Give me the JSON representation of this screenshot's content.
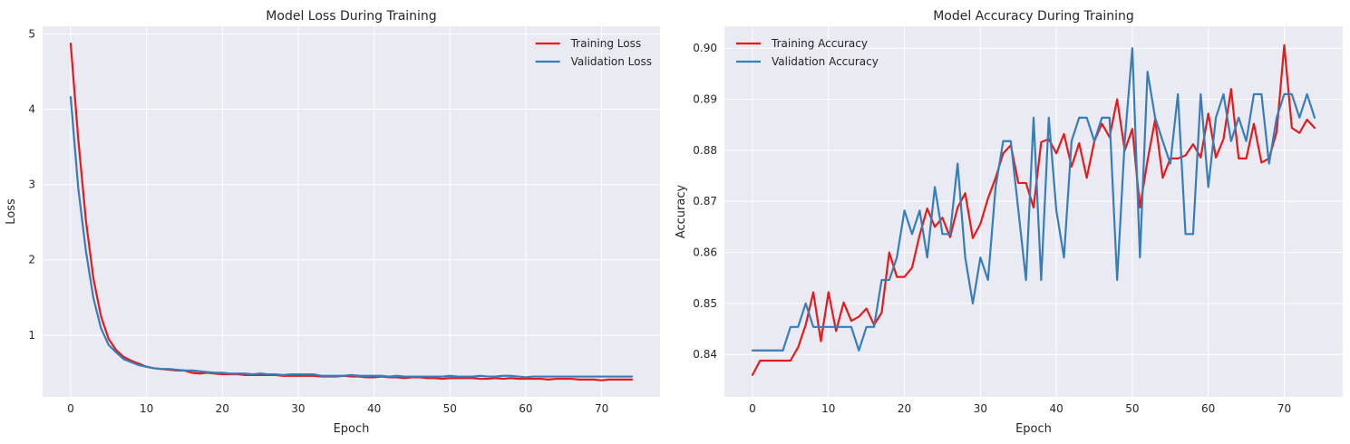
{
  "colors": {
    "figure_bg": "#ffffff",
    "axes_bg": "#eaeaf2",
    "grid": "#ffffff",
    "training": "#e41a1c",
    "validation": "#377eb8"
  },
  "chart_data": [
    {
      "type": "line",
      "title": "Model Loss During Training",
      "xlabel": "Epoch",
      "ylabel": "Loss",
      "xlim": [
        -3.7,
        77.7
      ],
      "ylim": [
        0.18,
        5.1
      ],
      "xticks": [
        0,
        10,
        20,
        30,
        40,
        50,
        60,
        70
      ],
      "yticks": [
        1,
        2,
        3,
        4,
        5
      ],
      "tick_decimals": 0,
      "grid": true,
      "legend": "top-right",
      "x_start": 0,
      "series": [
        {
          "name": "Training Loss",
          "color": "#e41a1c",
          "values": [
            4.87,
            3.6,
            2.53,
            1.75,
            1.25,
            0.95,
            0.8,
            0.71,
            0.66,
            0.62,
            0.58,
            0.56,
            0.55,
            0.54,
            0.53,
            0.53,
            0.5,
            0.49,
            0.5,
            0.49,
            0.48,
            0.48,
            0.48,
            0.47,
            0.47,
            0.47,
            0.47,
            0.47,
            0.46,
            0.46,
            0.46,
            0.46,
            0.46,
            0.45,
            0.45,
            0.45,
            0.46,
            0.45,
            0.45,
            0.44,
            0.44,
            0.45,
            0.44,
            0.44,
            0.43,
            0.44,
            0.44,
            0.43,
            0.43,
            0.42,
            0.43,
            0.43,
            0.43,
            0.43,
            0.42,
            0.42,
            0.43,
            0.42,
            0.43,
            0.42,
            0.42,
            0.42,
            0.42,
            0.41,
            0.42,
            0.42,
            0.42,
            0.41,
            0.41,
            0.41,
            0.4,
            0.41,
            0.41,
            0.41,
            0.41
          ]
        },
        {
          "name": "Validation Loss",
          "color": "#377eb8",
          "values": [
            4.16,
            2.95,
            2.12,
            1.49,
            1.09,
            0.87,
            0.77,
            0.68,
            0.64,
            0.6,
            0.58,
            0.56,
            0.55,
            0.55,
            0.54,
            0.53,
            0.53,
            0.52,
            0.51,
            0.5,
            0.5,
            0.49,
            0.49,
            0.49,
            0.48,
            0.49,
            0.48,
            0.48,
            0.47,
            0.48,
            0.48,
            0.48,
            0.48,
            0.46,
            0.46,
            0.46,
            0.46,
            0.47,
            0.46,
            0.46,
            0.46,
            0.46,
            0.45,
            0.46,
            0.45,
            0.45,
            0.45,
            0.45,
            0.45,
            0.45,
            0.46,
            0.45,
            0.45,
            0.45,
            0.46,
            0.45,
            0.45,
            0.46,
            0.46,
            0.45,
            0.44,
            0.45,
            0.45,
            0.45,
            0.45,
            0.45,
            0.45,
            0.45,
            0.45,
            0.45,
            0.45,
            0.45,
            0.45,
            0.45,
            0.45
          ]
        }
      ]
    },
    {
      "type": "line",
      "title": "Model Accuracy During Training",
      "xlabel": "Epoch",
      "ylabel": "Accuracy",
      "xlim": [
        -3.7,
        77.7
      ],
      "ylim": [
        0.8317,
        0.9043
      ],
      "xticks": [
        0,
        10,
        20,
        30,
        40,
        50,
        60,
        70
      ],
      "yticks": [
        0.84,
        0.85,
        0.86,
        0.87,
        0.88,
        0.89,
        0.9
      ],
      "tick_decimals": 2,
      "grid": true,
      "legend": "top-left",
      "x_start": 0,
      "series": [
        {
          "name": "Training Accuracy",
          "color": "#e41a1c",
          "values": [
            0.836,
            0.8388,
            0.8388,
            0.8388,
            0.8388,
            0.8388,
            0.8414,
            0.8458,
            0.8522,
            0.8426,
            0.8522,
            0.8446,
            0.8502,
            0.8466,
            0.8474,
            0.849,
            0.8458,
            0.8482,
            0.86,
            0.8552,
            0.8552,
            0.857,
            0.8634,
            0.8686,
            0.865,
            0.8668,
            0.863,
            0.8688,
            0.8716,
            0.8628,
            0.8656,
            0.8706,
            0.8746,
            0.8794,
            0.881,
            0.8736,
            0.8736,
            0.8688,
            0.8816,
            0.8822,
            0.8794,
            0.8832,
            0.8768,
            0.8814,
            0.8746,
            0.8818,
            0.8852,
            0.8826,
            0.89,
            0.88,
            0.8842,
            0.8688,
            0.878,
            0.886,
            0.8746,
            0.8784,
            0.8784,
            0.879,
            0.8812,
            0.8786,
            0.8872,
            0.8786,
            0.8822,
            0.892,
            0.8784,
            0.8784,
            0.8852,
            0.8776,
            0.8784,
            0.8836,
            0.9006,
            0.8844,
            0.8834,
            0.886,
            0.8844
          ]
        },
        {
          "name": "Validation Accuracy",
          "color": "#377eb8",
          "values": [
            0.8408,
            0.8408,
            0.8408,
            0.8408,
            0.8408,
            0.8454,
            0.8454,
            0.85,
            0.8454,
            0.8454,
            0.8454,
            0.8454,
            0.8454,
            0.8454,
            0.8408,
            0.8454,
            0.8454,
            0.8546,
            0.8546,
            0.859,
            0.8682,
            0.8636,
            0.8682,
            0.859,
            0.8728,
            0.8636,
            0.8636,
            0.8774,
            0.859,
            0.85,
            0.859,
            0.8546,
            0.8728,
            0.8818,
            0.8818,
            0.8682,
            0.8546,
            0.8864,
            0.8546,
            0.8864,
            0.8682,
            0.859,
            0.8818,
            0.8864,
            0.8864,
            0.8818,
            0.8864,
            0.8864,
            0.8546,
            0.8818,
            0.9,
            0.859,
            0.8954,
            0.8864,
            0.8818,
            0.8774,
            0.891,
            0.8636,
            0.8636,
            0.891,
            0.8728,
            0.8864,
            0.891,
            0.8818,
            0.8864,
            0.8818,
            0.891,
            0.891,
            0.8774,
            0.8864,
            0.891,
            0.891,
            0.8864,
            0.891,
            0.8864
          ]
        }
      ]
    }
  ]
}
